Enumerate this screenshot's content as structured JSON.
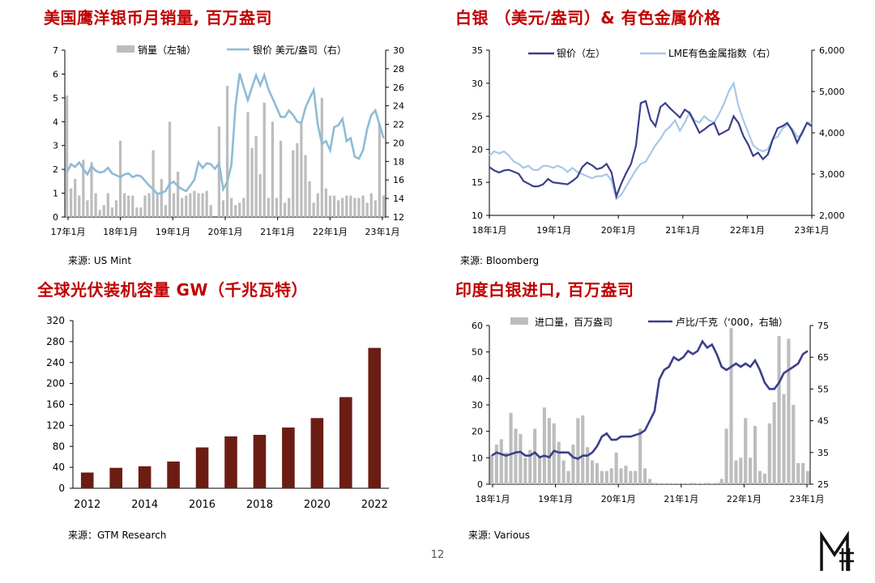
{
  "page": {
    "number": "12",
    "colors": {
      "title": "#c00000",
      "gray_bar": "#bdbdbd",
      "light_blue": "#8dbcd6",
      "navy": "#3b3f8c",
      "sky": "#a7c8e8",
      "maroon": "#6b1d13"
    }
  },
  "panels": {
    "eagle": {
      "title": "美国鹰洋银币月销量, 百万盎司",
      "source": "来源: US Mint",
      "legend": {
        "bar": "销量（左轴）",
        "line": "银价 美元/盎司（右）"
      }
    },
    "silver_lme": {
      "title": "白银 （美元/盎司）& 有色金属价格",
      "source": "来源: Bloomberg",
      "legend": {
        "silver": "银价（左）",
        "lme": "LME有色金属指数（右）"
      }
    },
    "solar": {
      "title": "全球光伏装机容量 GW（千兆瓦特）",
      "source": "来源：GTM Research"
    },
    "india": {
      "title": "印度白银进口, 百万盎司",
      "source": "来源: Various",
      "legend": {
        "bar": "进口量，百万盎司",
        "line": "卢比/千克（‘000，右轴）"
      }
    }
  },
  "chart_data": [
    {
      "type": "bar",
      "panel": "eagle",
      "x_ticks": [
        "17年1月",
        "18年1月",
        "19年1月",
        "20年1月",
        "21年1月",
        "22年1月",
        "23年1月"
      ],
      "y_left_ticks": [
        "0",
        "1",
        "2",
        "3",
        "4",
        "5",
        "6",
        "7"
      ],
      "y_right_ticks": [
        "12",
        "14",
        "16",
        "18",
        "20",
        "22",
        "24",
        "26",
        "28",
        "30"
      ],
      "ylim_left": [
        0,
        7
      ],
      "ylim_right": [
        12,
        30
      ],
      "series": [
        {
          "name": "销量（左轴）",
          "axis": "left",
          "kind": "bar",
          "values": [
            5.1,
            1.2,
            1.6,
            0.9,
            2.4,
            0.7,
            2.3,
            1.0,
            0.3,
            0.5,
            1.0,
            0.4,
            0.7,
            3.2,
            1.0,
            0.9,
            0.9,
            0.4,
            0.4,
            0.9,
            1.0,
            2.8,
            1.0,
            1.6,
            0.5,
            4.0,
            1.0,
            1.9,
            0.8,
            0.9,
            1.0,
            1.1,
            1.0,
            1.0,
            1.1,
            0.5,
            0,
            3.8,
            0.7,
            5.5,
            0.8,
            0.5,
            0.6,
            0.8,
            4.4,
            2.9,
            3.4,
            1.8,
            4.8,
            0.8,
            4.0,
            0.8,
            3.2,
            0.6,
            0.8,
            2.8,
            3.1,
            3.9,
            2.6,
            1.5,
            0.6,
            1.0,
            5.0,
            1.2,
            0.9,
            0.9,
            0.7,
            0.8,
            0.9,
            0.9,
            0.8,
            0.8,
            0.9,
            0.6,
            1.0,
            0.7,
            3.9,
            0.9
          ]
        },
        {
          "name": "银价 美元/盎司（右）",
          "axis": "right",
          "kind": "line",
          "values": [
            16.8,
            17.7,
            17.4,
            17.9,
            17.2,
            16.6,
            17.5,
            17.0,
            16.8,
            16.9,
            17.3,
            16.7,
            16.5,
            16.3,
            16.6,
            16.7,
            16.3,
            16.5,
            16.4,
            15.9,
            15.4,
            15.0,
            14.5,
            14.6,
            14.8,
            15.6,
            15.8,
            15.3,
            15.0,
            14.8,
            15.4,
            16.0,
            17.9,
            17.3,
            17.8,
            17.7,
            17.2,
            17.8,
            15.0,
            15.8,
            17.6,
            24.0,
            27.5,
            26.0,
            24.6,
            26.0,
            27.3,
            26.2,
            27.3,
            25.8,
            24.8,
            23.8,
            22.8,
            22.8,
            23.5,
            23.0,
            22.3,
            22.1,
            23.8,
            24.8,
            25.7,
            22.0,
            19.9,
            20.2,
            19.2,
            21.7,
            21.9,
            22.6,
            20.2,
            20.5,
            18.5,
            18.3,
            19.2,
            21.5,
            23.0,
            23.5,
            22.0,
            20.5
          ]
        }
      ]
    },
    {
      "type": "line",
      "panel": "silver_lme",
      "x_ticks": [
        "18年1月",
        "19年1月",
        "20年1月",
        "21年1月",
        "22年1月",
        "23年1月"
      ],
      "y_left_ticks": [
        "10",
        "15",
        "20",
        "25",
        "30",
        "35"
      ],
      "y_right_ticks": [
        "2,000",
        "3,000",
        "4,000",
        "5,000",
        "6,000"
      ],
      "ylim_left": [
        10,
        35
      ],
      "ylim_right": [
        2000,
        6000
      ],
      "series": [
        {
          "name": "银价（左）",
          "axis": "left",
          "values": [
            17.3,
            16.8,
            16.5,
            16.8,
            16.9,
            16.6,
            16.3,
            15.2,
            14.8,
            14.4,
            14.4,
            14.7,
            15.5,
            15.0,
            14.9,
            14.8,
            14.7,
            15.2,
            15.8,
            17.3,
            18.0,
            17.6,
            17.0,
            17.2,
            17.8,
            16.5,
            12.9,
            14.8,
            16.4,
            17.8,
            20.5,
            27.0,
            27.3,
            24.5,
            23.5,
            26.4,
            27.0,
            26.2,
            25.5,
            24.8,
            26.0,
            25.5,
            24.0,
            22.5,
            23.0,
            23.6,
            24.0,
            22.2,
            22.6,
            23.0,
            25.0,
            24.0,
            22.0,
            20.7,
            19.0,
            19.5,
            18.5,
            19.2,
            21.5,
            23.2,
            23.5,
            24.0,
            22.8,
            21.0,
            22.5,
            24.0,
            23.5
          ]
        },
        {
          "name": "LME有色金属指数（右）",
          "axis": "right",
          "values": [
            3450,
            3550,
            3500,
            3550,
            3450,
            3300,
            3250,
            3150,
            3200,
            3100,
            3100,
            3200,
            3200,
            3150,
            3200,
            3150,
            3050,
            3150,
            3050,
            3000,
            2950,
            2900,
            2950,
            2950,
            3000,
            2850,
            2400,
            2500,
            2700,
            2900,
            3100,
            3250,
            3300,
            3500,
            3700,
            3850,
            4050,
            4150,
            4300,
            4050,
            4250,
            4500,
            4300,
            4250,
            4400,
            4300,
            4250,
            4450,
            4700,
            5000,
            5200,
            4650,
            4300,
            4000,
            3700,
            3600,
            3550,
            3600,
            3850,
            3900,
            4100,
            4200,
            4100,
            3900,
            3950,
            4250,
            4250
          ]
        }
      ]
    },
    {
      "type": "bar",
      "panel": "solar",
      "categories": [
        "2012",
        "2013",
        "2014",
        "2015",
        "2016",
        "2017",
        "2018",
        "2019",
        "2020",
        "2021",
        "2022"
      ],
      "x_tick_labels": [
        "2012",
        "2014",
        "2016",
        "2018",
        "2020",
        "2022"
      ],
      "y_ticks": [
        "0",
        "40",
        "80",
        "120",
        "160",
        "200",
        "240",
        "280",
        "320"
      ],
      "ylim": [
        0,
        320
      ],
      "values": [
        30,
        39,
        42,
        51,
        78,
        99,
        102,
        116,
        134,
        174,
        268
      ]
    },
    {
      "type": "bar",
      "panel": "india",
      "x_ticks": [
        "18年1月",
        "19年1月",
        "20年1月",
        "21年1月",
        "22年1月",
        "23年1月"
      ],
      "y_left_ticks": [
        "0",
        "10",
        "20",
        "30",
        "40",
        "50",
        "60"
      ],
      "y_right_ticks": [
        "25",
        "35",
        "45",
        "55",
        "65",
        "75"
      ],
      "ylim_left": [
        0,
        60
      ],
      "ylim_right": [
        25,
        75
      ],
      "series": [
        {
          "name": "进口量，百万盎司",
          "axis": "left",
          "kind": "bar",
          "values": [
            11,
            15,
            17,
            12,
            27,
            21,
            19,
            10,
            13,
            21,
            10,
            29,
            25,
            23,
            16,
            9,
            5,
            15,
            25,
            26,
            14,
            9,
            8,
            5,
            5,
            6,
            12,
            6,
            7,
            5,
            5,
            21,
            6,
            2,
            0.5,
            0.3,
            0.3,
            0.3,
            0.3,
            0.3,
            0.3,
            0.3,
            0.5,
            0.3,
            0.3,
            0.5,
            0.3,
            0.5,
            2,
            21,
            59,
            9,
            10,
            25,
            10,
            22,
            5,
            4,
            23,
            31,
            56,
            34,
            55,
            30,
            8,
            8,
            5
          ]
        },
        {
          "name": "卢比/千克（‘000，右轴）",
          "axis": "right",
          "kind": "line",
          "values": [
            34,
            35,
            34.5,
            34,
            34.5,
            35,
            35.2,
            34,
            34,
            35,
            33.5,
            34,
            33.5,
            35.5,
            35,
            35,
            35,
            33.5,
            33,
            34,
            34,
            35,
            37,
            40,
            41,
            39,
            39,
            40,
            40,
            40,
            40.5,
            41,
            42,
            45,
            48,
            58,
            61,
            62,
            65,
            64,
            65,
            67,
            66,
            67,
            70,
            68,
            69,
            66,
            62,
            61,
            62,
            63,
            62,
            63,
            62,
            64,
            61,
            57,
            55,
            55,
            57,
            60,
            61,
            62,
            63,
            66,
            67
          ]
        }
      ]
    }
  ]
}
